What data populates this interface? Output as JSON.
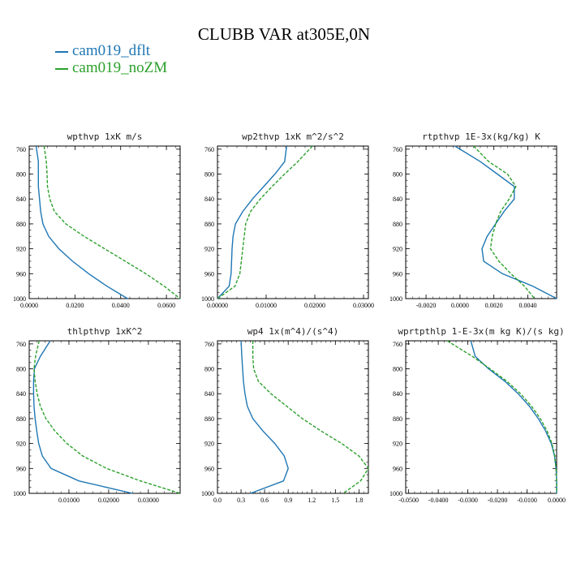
{
  "figure_title": "CLUBB VAR at305E,0N",
  "legend": [
    {
      "label": "cam019_dflt",
      "color": "#1f77b4"
    },
    {
      "label": "cam019_noZM",
      "color": "#2ca02c"
    }
  ],
  "chart_data": [
    {
      "type": "line",
      "title": "wpthvp   1xK m/s",
      "xlim": [
        0,
        0.066
      ],
      "ylim": [
        1000,
        755
      ],
      "xticks": [
        0,
        0.02,
        0.04,
        0.06
      ],
      "xtick_labels": [
        "0.0000",
        "0.0200",
        "0.0400",
        "0.0600"
      ],
      "yticks": [
        760,
        800,
        840,
        880,
        920,
        960,
        1000
      ],
      "y": [
        755,
        780,
        800,
        820,
        840,
        860,
        880,
        900,
        920,
        940,
        960,
        980,
        1000
      ],
      "series": [
        {
          "name": "cam019_dflt",
          "values": [
            0.003,
            0.004,
            0.004,
            0.004,
            0.0045,
            0.005,
            0.006,
            0.0085,
            0.013,
            0.019,
            0.026,
            0.034,
            0.043
          ]
        },
        {
          "name": "cam019_noZM",
          "values": [
            0.0065,
            0.0075,
            0.0078,
            0.008,
            0.009,
            0.011,
            0.016,
            0.024,
            0.033,
            0.042,
            0.051,
            0.059,
            0.066
          ]
        }
      ]
    },
    {
      "type": "line",
      "title": "wp2thvp   1xK m^2/s^2",
      "xlim": [
        0,
        0.031
      ],
      "ylim": [
        1000,
        755
      ],
      "xticks": [
        0,
        0.01,
        0.02,
        0.03
      ],
      "xtick_labels": [
        "0.00000",
        "0.01000",
        "0.02000",
        "0.03000"
      ],
      "yticks": [
        760,
        800,
        840,
        880,
        920,
        960,
        1000
      ],
      "y": [
        755,
        780,
        800,
        820,
        840,
        860,
        880,
        900,
        920,
        940,
        960,
        980,
        1000
      ],
      "series": [
        {
          "name": "cam019_dflt",
          "values": [
            0.0142,
            0.0138,
            0.0118,
            0.0095,
            0.0072,
            0.0052,
            0.0037,
            0.0032,
            0.003,
            0.0029,
            0.0028,
            0.0024,
            0.0
          ]
        },
        {
          "name": "cam019_noZM",
          "values": [
            0.0195,
            0.0165,
            0.0138,
            0.0112,
            0.0088,
            0.0068,
            0.0058,
            0.0055,
            0.0052,
            0.0049,
            0.0046,
            0.0036,
            0.0
          ]
        }
      ]
    },
    {
      "type": "line",
      "title": "rtpthvp   1E-3x(kg/kg) K",
      "xlim": [
        -0.0032,
        0.0057
      ],
      "ylim": [
        1000,
        755
      ],
      "xticks": [
        -0.002,
        0,
        0.002,
        0.004
      ],
      "xtick_labels": [
        "-0.0020",
        "0.0000",
        "0.0020",
        "0.0040"
      ],
      "yticks": [
        760,
        800,
        840,
        880,
        920,
        960,
        1000
      ],
      "y": [
        755,
        780,
        800,
        820,
        840,
        860,
        880,
        900,
        920,
        940,
        960,
        980,
        1000
      ],
      "series": [
        {
          "name": "cam019_dflt",
          "values": [
            -0.0003,
            0.0012,
            0.0022,
            0.0032,
            0.0032,
            0.0026,
            0.0021,
            0.0016,
            0.0013,
            0.0014,
            0.0025,
            0.0043,
            0.0057
          ]
        },
        {
          "name": "cam019_noZM",
          "values": [
            0.0008,
            0.0017,
            0.0028,
            0.0033,
            0.0029,
            0.0024,
            0.0021,
            0.0019,
            0.0018,
            0.0023,
            0.003,
            0.0038,
            0.0044
          ]
        }
      ]
    },
    {
      "type": "line",
      "title": "thlpthvp   1xK^2",
      "xlim": [
        0,
        0.038
      ],
      "ylim": [
        1000,
        755
      ],
      "xticks": [
        0.01,
        0.02,
        0.03
      ],
      "xtick_labels": [
        "0.01000",
        "0.02000",
        "0.03000"
      ],
      "yticks": [
        760,
        800,
        840,
        880,
        920,
        960,
        1000
      ],
      "y": [
        755,
        780,
        800,
        820,
        840,
        860,
        880,
        900,
        920,
        940,
        960,
        980,
        1000
      ],
      "series": [
        {
          "name": "cam019_dflt",
          "values": [
            0.0053,
            0.0028,
            0.0013,
            0.0011,
            0.0011,
            0.0012,
            0.0015,
            0.0019,
            0.0024,
            0.0033,
            0.0055,
            0.0125,
            0.026
          ]
        },
        {
          "name": "cam019_noZM",
          "values": [
            0.0025,
            0.0016,
            0.0012,
            0.0015,
            0.002,
            0.0028,
            0.0042,
            0.0065,
            0.0095,
            0.0135,
            0.0195,
            0.028,
            0.038
          ]
        }
      ]
    },
    {
      "type": "line",
      "title": "wp4   1x(m^4)/(s^4)",
      "xlim": [
        0,
        1.92
      ],
      "ylim": [
        1000,
        755
      ],
      "xticks": [
        0,
        0.3,
        0.6,
        0.9,
        1.2,
        1.5,
        1.8
      ],
      "xtick_labels": [
        "0.0",
        "0.3",
        "0.6",
        "0.9",
        "1.2",
        "1.5",
        "1.8"
      ],
      "yticks": [
        760,
        800,
        840,
        880,
        920,
        960,
        1000
      ],
      "y": [
        755,
        780,
        800,
        820,
        840,
        860,
        880,
        900,
        920,
        940,
        960,
        980,
        1000
      ],
      "series": [
        {
          "name": "cam019_dflt",
          "values": [
            0.3,
            0.31,
            0.32,
            0.33,
            0.35,
            0.38,
            0.45,
            0.58,
            0.73,
            0.85,
            0.9,
            0.84,
            0.42
          ]
        },
        {
          "name": "cam019_noZM",
          "values": [
            0.45,
            0.45,
            0.46,
            0.52,
            0.68,
            0.88,
            1.08,
            1.32,
            1.58,
            1.8,
            1.92,
            1.82,
            1.6
          ]
        }
      ]
    },
    {
      "type": "line",
      "title": "wprtpthlp   1-E-3x(m kg K)/(s kg)",
      "xlim": [
        -0.051,
        0.0
      ],
      "ylim": [
        1000,
        755
      ],
      "xticks": [
        -0.05,
        -0.04,
        -0.03,
        -0.02,
        -0.01,
        0.0
      ],
      "xtick_labels": [
        "-0.0500",
        "-0.0400",
        "-0.0300",
        "-0.0200",
        "-0.0100",
        "0.0000"
      ],
      "yticks": [
        760,
        800,
        840,
        880,
        920,
        960,
        1000
      ],
      "y": [
        755,
        780,
        800,
        820,
        840,
        860,
        880,
        900,
        920,
        940,
        960,
        980,
        1000
      ],
      "series": [
        {
          "name": "cam019_dflt",
          "values": [
            -0.029,
            -0.0275,
            -0.023,
            -0.0175,
            -0.013,
            -0.0092,
            -0.0062,
            -0.0037,
            -0.0018,
            -0.0007,
            -0.0002,
            0.0,
            0.0
          ]
        },
        {
          "name": "cam019_noZM",
          "values": [
            -0.037,
            -0.0285,
            -0.0225,
            -0.0168,
            -0.0122,
            -0.0085,
            -0.0055,
            -0.0032,
            -0.0016,
            -0.0006,
            -0.0002,
            0.0,
            0.0
          ]
        }
      ]
    }
  ]
}
